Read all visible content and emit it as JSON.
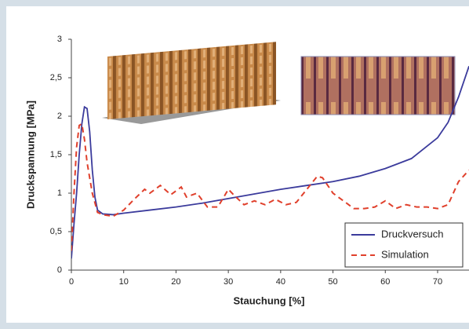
{
  "chart_data": {
    "type": "line",
    "x_label": "Stauchung [%]",
    "y_label": "Druckspannung [MPa]",
    "xlim": [
      0,
      76
    ],
    "ylim": [
      0,
      3
    ],
    "xticks": [
      0,
      10,
      20,
      30,
      40,
      50,
      60,
      70
    ],
    "yticks": [
      0,
      {
        "value": 0.5,
        "label": "0,5"
      },
      1,
      {
        "value": 1.5,
        "label": "1,5"
      },
      2,
      {
        "value": 2.5,
        "label": "2,5"
      },
      3
    ],
    "legend": "lower right",
    "series": [
      {
        "name": "Druckversuch",
        "color": "#3b3b9c",
        "dash": "solid",
        "x": [
          0,
          0.5,
          1,
          1.5,
          2,
          2.5,
          3,
          3.5,
          4,
          4.5,
          5,
          6,
          8,
          10,
          15,
          20,
          25,
          30,
          35,
          40,
          45,
          50,
          55,
          60,
          65,
          70,
          72,
          74,
          76
        ],
        "values": [
          0.15,
          0.6,
          1.0,
          1.5,
          1.9,
          2.12,
          2.1,
          1.8,
          1.3,
          0.95,
          0.78,
          0.73,
          0.72,
          0.74,
          0.78,
          0.82,
          0.87,
          0.93,
          0.99,
          1.05,
          1.1,
          1.15,
          1.22,
          1.32,
          1.45,
          1.72,
          1.92,
          2.25,
          2.65
        ]
      },
      {
        "name": "Simulation",
        "color": "#e0402c",
        "dash": "dashed",
        "x": [
          0,
          0.5,
          1,
          1.5,
          2,
          2.5,
          3,
          4,
          5,
          6,
          8,
          10,
          12,
          14,
          15,
          17,
          19,
          21,
          22,
          24,
          26,
          28,
          30,
          31,
          33,
          35,
          37,
          39,
          41,
          43,
          45,
          47,
          48,
          50,
          52,
          54,
          56,
          58,
          60,
          62,
          64,
          66,
          68,
          70,
          72,
          74,
          76
        ],
        "values": [
          0.25,
          1.0,
          1.6,
          1.88,
          1.9,
          1.7,
          1.4,
          1.0,
          0.75,
          0.72,
          0.7,
          0.78,
          0.92,
          1.05,
          1.0,
          1.1,
          0.98,
          1.08,
          0.95,
          1.0,
          0.82,
          0.82,
          1.05,
          0.98,
          0.85,
          0.9,
          0.85,
          0.92,
          0.85,
          0.88,
          1.05,
          1.22,
          1.2,
          1.0,
          0.9,
          0.8,
          0.8,
          0.82,
          0.9,
          0.8,
          0.85,
          0.82,
          0.82,
          0.8,
          0.85,
          1.15,
          1.3
        ]
      }
    ]
  }
}
